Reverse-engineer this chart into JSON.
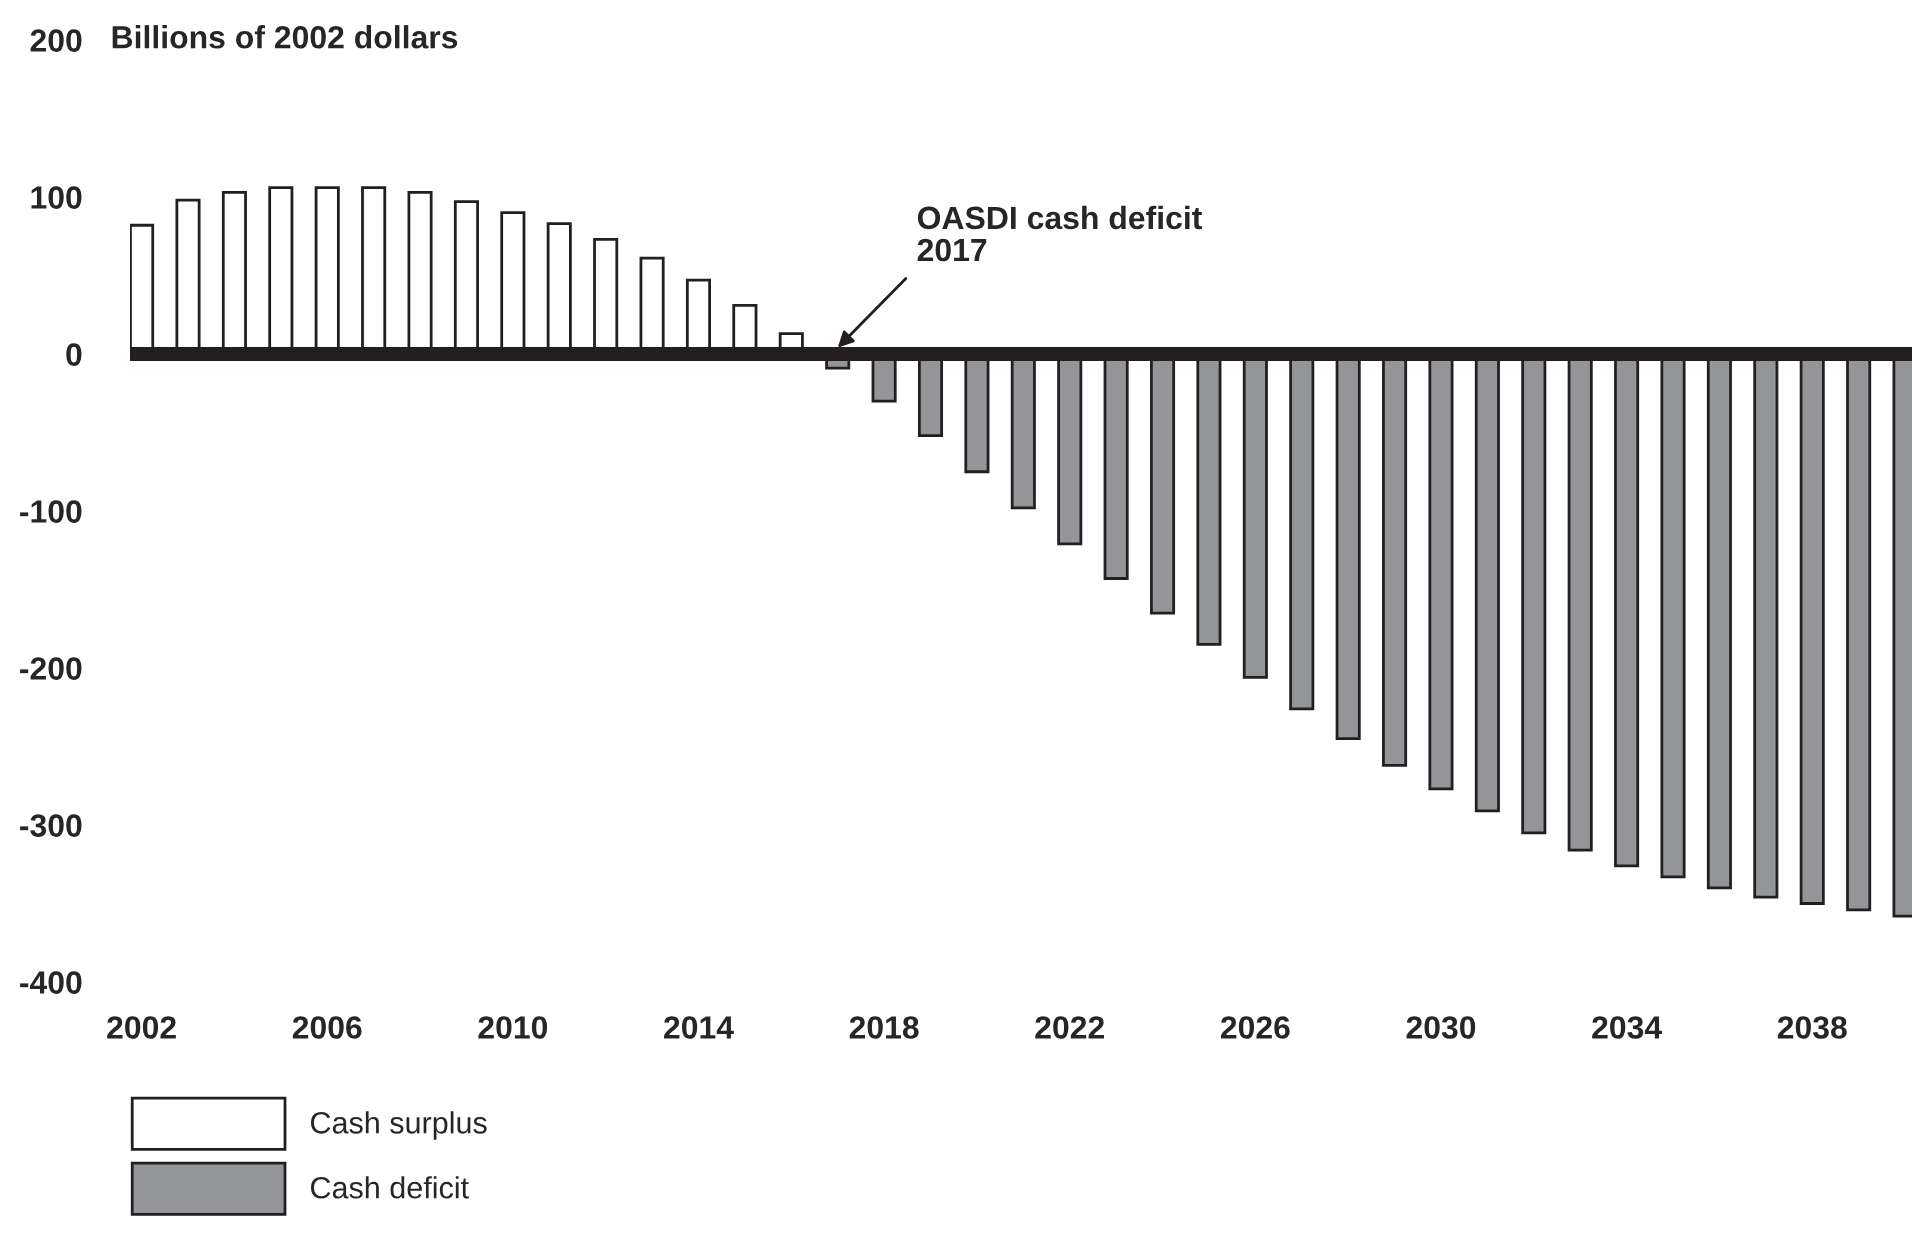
{
  "chart_data": {
    "type": "bar",
    "x": [
      2002,
      2003,
      2004,
      2005,
      2006,
      2007,
      2008,
      2009,
      2010,
      2011,
      2012,
      2013,
      2014,
      2015,
      2016,
      2017,
      2018,
      2019,
      2020,
      2021,
      2022,
      2023,
      2024,
      2025,
      2026,
      2027,
      2028,
      2029,
      2030,
      2031,
      2032,
      2033,
      2034,
      2035,
      2036,
      2037,
      2038,
      2039,
      2040
    ],
    "series": [
      {
        "name": "Cash surplus",
        "color": "#ffffff",
        "values": [
          82,
          98,
          103,
          106,
          106,
          106,
          103,
          97,
          90,
          83,
          73,
          61,
          47,
          31,
          13,
          null,
          null,
          null,
          null,
          null,
          null,
          null,
          null,
          null,
          null,
          null,
          null,
          null,
          null,
          null,
          null,
          null,
          null,
          null,
          null,
          null,
          null,
          null,
          null
        ]
      },
      {
        "name": "Cash deficit",
        "color": "#939598",
        "values": [
          null,
          null,
          null,
          null,
          null,
          null,
          null,
          null,
          null,
          null,
          null,
          null,
          null,
          null,
          null,
          -9,
          -30,
          -52,
          -75,
          -98,
          -121,
          -143,
          -165,
          -185,
          -206,
          -226,
          -245,
          -262,
          -277,
          -291,
          -305,
          -316,
          -326,
          -333,
          -340,
          -346,
          -350,
          -354,
          -358
        ]
      }
    ],
    "ylabel": "Billions of 2002 dollars",
    "xlim": [
      2001.75,
      2040.15
    ],
    "xticks": [
      2002,
      2006,
      2010,
      2014,
      2018,
      2022,
      2026,
      2030,
      2034,
      2038
    ],
    "ylim": [
      -400,
      200
    ],
    "yticks": [
      -400,
      -300,
      -200,
      -100,
      0,
      100,
      200
    ],
    "ref_lines": [
      {
        "axis": "y",
        "value": 0,
        "color": "#231f20"
      }
    ],
    "annotations": [
      {
        "text": "OASDI cash deficit\n2017",
        "x": 2017,
        "y": 0
      }
    ],
    "grid": false,
    "legend": "bottom left"
  }
}
